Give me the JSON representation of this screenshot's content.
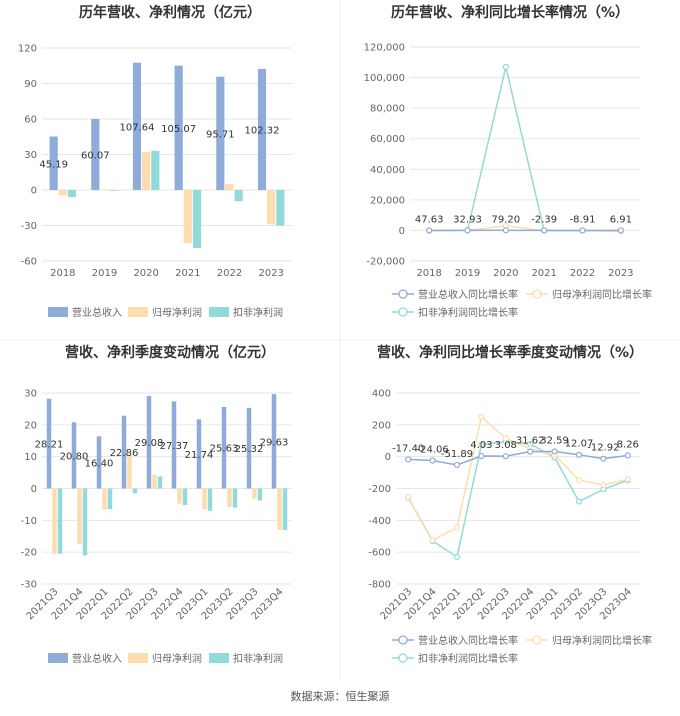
{
  "source": "数据来源：恒生聚源",
  "colors": {
    "revenue": "#8FABD9",
    "net_profit": "#FDDDAE",
    "deducted_profit": "#92DADA",
    "grid": "#e6e6e6",
    "axis_text": "#666666",
    "title": "#333333"
  },
  "chart_data": [
    {
      "id": "annual_amount",
      "type": "bar",
      "title": "历年营收、净利情况（亿元）",
      "categories": [
        "2018",
        "2019",
        "2020",
        "2021",
        "2022",
        "2023"
      ],
      "ylim": [
        -60,
        120
      ],
      "yticks": [
        "120",
        "90",
        "60",
        "30",
        "0",
        "-30",
        "-60"
      ],
      "series": [
        {
          "name": "营业总收入",
          "values": [
            45.19,
            60.07,
            107.64,
            105.07,
            95.71,
            102.32
          ],
          "labels": [
            "45.19",
            "60.07",
            "107.64",
            "105.07",
            "95.71",
            "102.32"
          ]
        },
        {
          "name": "归母净利润",
          "values": [
            -4.5,
            0.5,
            32,
            -45,
            5,
            -29
          ],
          "labels": []
        },
        {
          "name": "扣非净利润",
          "values": [
            -6,
            -0.5,
            33,
            -49,
            -9.5,
            -30
          ],
          "labels": []
        }
      ],
      "legend": "bottom"
    },
    {
      "id": "annual_growth",
      "type": "line",
      "title": "历年营收、净利同比增长率情况（%）",
      "categories": [
        "2018",
        "2019",
        "2020",
        "2021",
        "2022",
        "2023"
      ],
      "ylim": [
        -20000,
        120000
      ],
      "yticks": [
        "120,000",
        "100,000",
        "80,000",
        "60,000",
        "40,000",
        "20,000",
        "0",
        "-20,000"
      ],
      "series": [
        {
          "name": "营业总收入同比增长率",
          "values": [
            47.63,
            32.93,
            79.2,
            -2.39,
            -8.91,
            6.91
          ],
          "labels": [
            "47.63",
            "32.93",
            "79.20",
            "-2.39",
            "-8.91",
            "6.91"
          ]
        },
        {
          "name": "归母净利润同比增长率",
          "values": [
            -300,
            110,
            3000,
            -240,
            110,
            -700
          ],
          "labels": []
        },
        {
          "name": "扣非净利润同比增长率",
          "values": [
            -350,
            90,
            107000,
            -250,
            -120,
            -420
          ],
          "labels": []
        }
      ],
      "legend": "bottom"
    },
    {
      "id": "quarter_amount",
      "type": "bar",
      "title": "营收、净利季度变动情况（亿元）",
      "categories": [
        "2021Q3",
        "2021Q4",
        "2022Q1",
        "2022Q2",
        "2022Q3",
        "2022Q4",
        "2023Q1",
        "2023Q2",
        "2023Q3",
        "2023Q4"
      ],
      "ylim": [
        -30,
        30
      ],
      "yticks": [
        "30",
        "20",
        "10",
        "0",
        "-10",
        "-20",
        "-30"
      ],
      "series": [
        {
          "name": "营业总收入",
          "values": [
            28.21,
            20.8,
            16.4,
            22.86,
            29.08,
            27.37,
            21.74,
            25.63,
            25.32,
            29.63
          ],
          "labels": [
            "28.21",
            "20.80",
            "16.40",
            "22.86",
            "29.08",
            "27.37",
            "21.74",
            "25.63",
            "25.32",
            "29.63"
          ]
        },
        {
          "name": "归母净利润",
          "values": [
            -20.5,
            -17.5,
            -6.5,
            10.8,
            4.3,
            -4.8,
            -6.5,
            -5.8,
            -3.2,
            -13
          ],
          "labels": []
        },
        {
          "name": "扣非净利润",
          "values": [
            -20.5,
            -21,
            -6.5,
            -1.5,
            3.8,
            -5.2,
            -7,
            -6,
            -3.8,
            -13
          ],
          "labels": []
        }
      ],
      "legend": "bottom"
    },
    {
      "id": "quarter_growth",
      "type": "line",
      "title": "营收、净利同比增长率季度变动情况（%）",
      "categories": [
        "2021Q3",
        "2021Q4",
        "2022Q1",
        "2022Q2",
        "2022Q3",
        "2022Q4",
        "2023Q1",
        "2023Q2",
        "2023Q3",
        "2023Q4"
      ],
      "ylim": [
        -800,
        400
      ],
      "yticks": [
        "400",
        "200",
        "0",
        "-200",
        "-400",
        "-600",
        "-800"
      ],
      "series": [
        {
          "name": "营业总收入同比增长率",
          "values": [
            -17.4,
            -24.06,
            -51.89,
            4.03,
            3.08,
            31.62,
            32.59,
            12.07,
            -12.92,
            8.26
          ],
          "labels": [
            "-17.40",
            "-24.06",
            "-51.89",
            "4.03",
            "3.08",
            "31.62",
            "32.59",
            "12.07",
            "-12.92",
            "8.26"
          ]
        },
        {
          "name": "归母净利润同比增长率",
          "values": [
            -255,
            -525,
            -445,
            250,
            115,
            50,
            10,
            -148,
            -178,
            -142
          ],
          "labels": []
        },
        {
          "name": "扣非净利润同比增长率",
          "values": [
            -258,
            -530,
            -630,
            75,
            95,
            80,
            -5,
            -282,
            -205,
            -148
          ],
          "labels": []
        }
      ],
      "legend": "bottom"
    }
  ]
}
